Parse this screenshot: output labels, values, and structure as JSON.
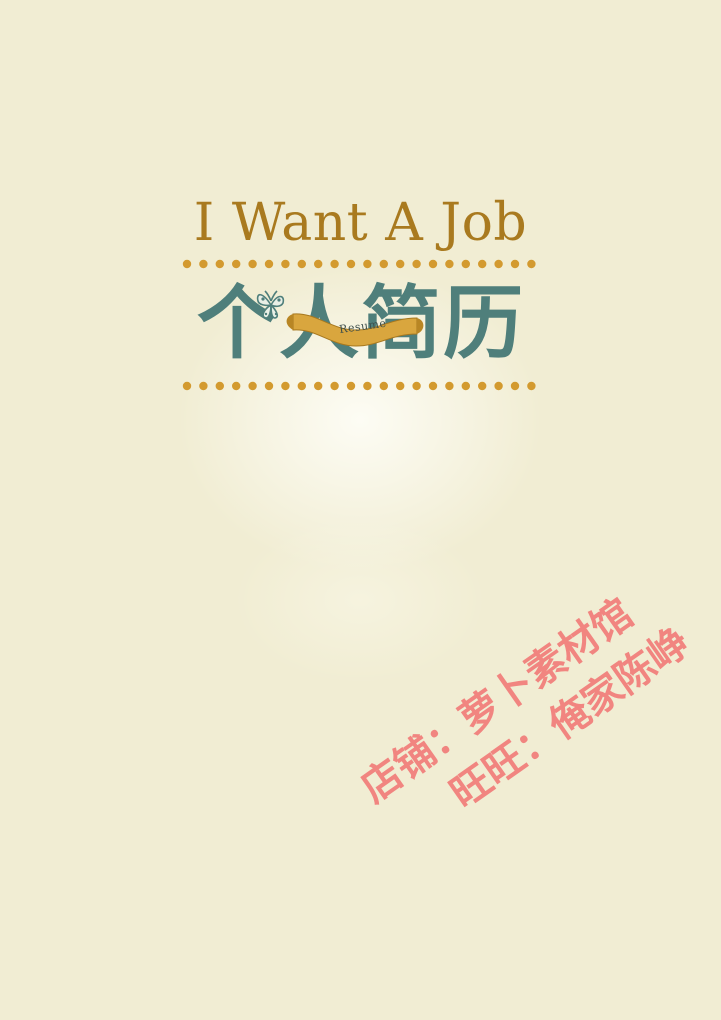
{
  "cover": {
    "title_en": "I Want A Job",
    "title_cn": "个人简历",
    "ribbon_label": "Resume"
  },
  "watermark": {
    "line1": "店铺：萝卜素材馆",
    "line2": "旺旺：俺家陈峥"
  },
  "colors": {
    "background": "#f1edd3",
    "accent_gold": "#c98f2a",
    "title_teal": "#4f7f7b",
    "watermark_pink": "#f06e6e"
  }
}
